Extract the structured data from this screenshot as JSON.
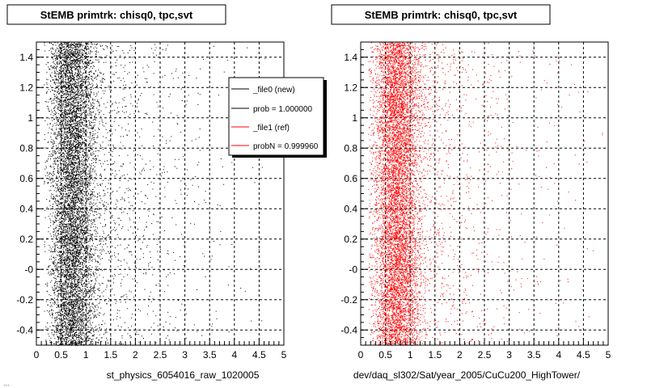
{
  "footer_text": "...",
  "chart_data": [
    {
      "type": "scatter",
      "title": "StEMB primtrk: chisq0, tpc,svt",
      "xlabel": "st_physics_6054016_raw_1020005",
      "ylabel": "",
      "xlim": [
        0,
        5
      ],
      "ylim": [
        -0.5,
        1.5
      ],
      "x_ticks": [
        "0",
        "0.5",
        "1",
        "1.5",
        "2",
        "2.5",
        "3",
        "3.5",
        "4",
        "4.5",
        "5"
      ],
      "y_ticks": [
        "-0.4",
        "-0.2",
        "-0",
        "0.2",
        "0.4",
        "0.6",
        "0.8",
        "1",
        "1.2",
        "1.4"
      ],
      "grid": true,
      "marker_color": "#000000",
      "series": [
        {
          "name": "_file0 (new)",
          "distribution": {
            "dense_x_center": 0.72,
            "dense_x_spread": 0.22,
            "tail_x_max": 5.0,
            "y_range": [
              -0.5,
              1.5
            ],
            "point_count": 9000
          }
        }
      ],
      "legend": {
        "placement": "top-right",
        "entries": [
          {
            "label": "_file0 (new)",
            "color": "#000000"
          },
          {
            "label": "prob = 1.000000",
            "color": "#000000"
          },
          {
            "label": "_file1 (ref)",
            "color": "#ff0000"
          },
          {
            "label": "probN = 0.999960",
            "color": "#ff0000"
          }
        ]
      }
    },
    {
      "type": "scatter",
      "title": "StEMB primtrk: chisq0, tpc,svt",
      "xlabel": "dev/daq_sl302/Sat/year_2005/CuCu200_HighTower/",
      "ylabel": "",
      "xlim": [
        0,
        5
      ],
      "ylim": [
        -0.5,
        1.5
      ],
      "x_ticks": [
        "0",
        "0.5",
        "1",
        "1.5",
        "2",
        "2.5",
        "3",
        "3.5",
        "4",
        "4.5",
        "5"
      ],
      "y_ticks": [
        "-0.4",
        "-0.2",
        "-0",
        "0.2",
        "0.4",
        "0.6",
        "0.8",
        "1",
        "1.2",
        "1.4"
      ],
      "grid": true,
      "marker_color": "#ff0000",
      "series": [
        {
          "name": "_file1 (ref)",
          "distribution": {
            "dense_x_center": 0.72,
            "dense_x_spread": 0.22,
            "tail_x_max": 5.0,
            "y_range": [
              -0.5,
              1.5
            ],
            "point_count": 9000
          }
        }
      ]
    }
  ]
}
